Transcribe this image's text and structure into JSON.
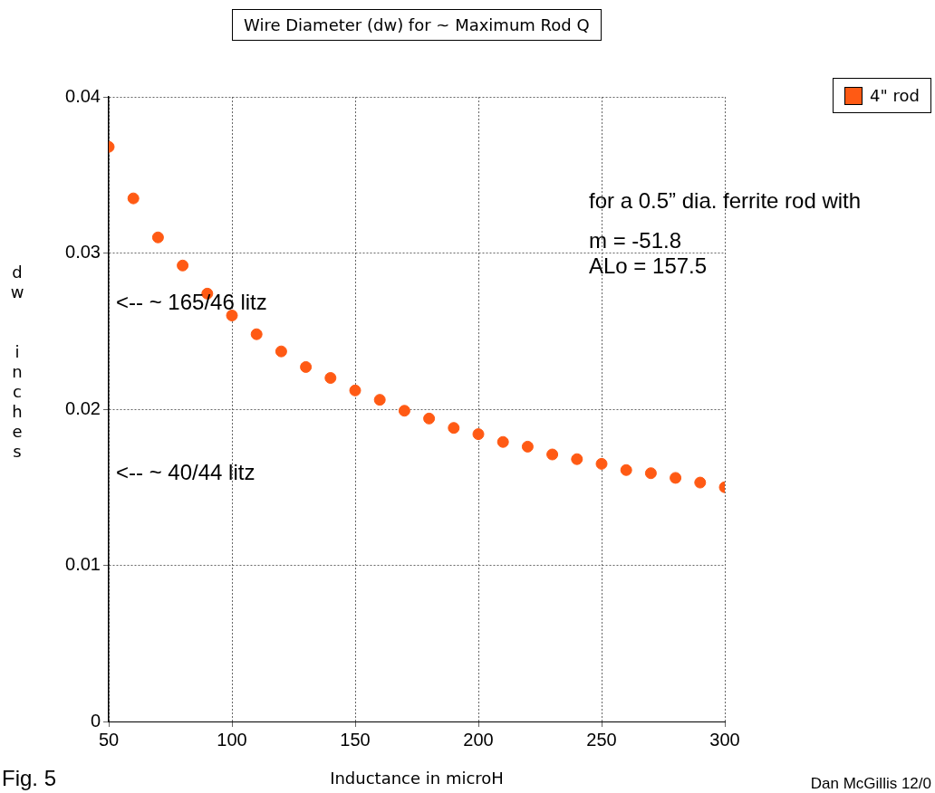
{
  "chart_data": {
    "type": "scatter",
    "title": "Wire Diameter (dw) for ~ Maximum Rod Q",
    "xlabel": "Inductance in microH",
    "ylabel": "dw inches",
    "x": [
      50,
      60,
      70,
      80,
      90,
      100,
      110,
      120,
      130,
      140,
      150,
      160,
      170,
      180,
      190,
      200,
      210,
      220,
      230,
      240,
      250,
      260,
      270,
      280,
      290,
      300
    ],
    "series": [
      {
        "name": "4\" rod",
        "color": "#ff5a14",
        "values": [
          0.0368,
          0.0335,
          0.031,
          0.0292,
          0.0274,
          0.026,
          0.0248,
          0.0237,
          0.0227,
          0.022,
          0.0212,
          0.0206,
          0.0199,
          0.0194,
          0.0188,
          0.0184,
          0.0179,
          0.0176,
          0.0171,
          0.0168,
          0.0165,
          0.0161,
          0.0159,
          0.0156,
          0.0153,
          0.015
        ]
      }
    ],
    "xlim": [
      50,
      300
    ],
    "xticks": [
      50,
      100,
      150,
      200,
      250,
      300
    ],
    "ylim": [
      0,
      0.04
    ],
    "yticks": [
      0,
      0.01,
      0.02,
      0.03,
      0.04
    ],
    "grid": true,
    "legend": "top right",
    "marker": "circle",
    "annotations": [
      "<-- ~ 165/46 litz",
      "<-- ~ 40/44 litz",
      "for a 0.5” dia. ferrite rod with",
      "m = -51.8",
      "ALo = 157.5",
      "Fig. 5",
      "Dan McGillis  12/0"
    ]
  }
}
